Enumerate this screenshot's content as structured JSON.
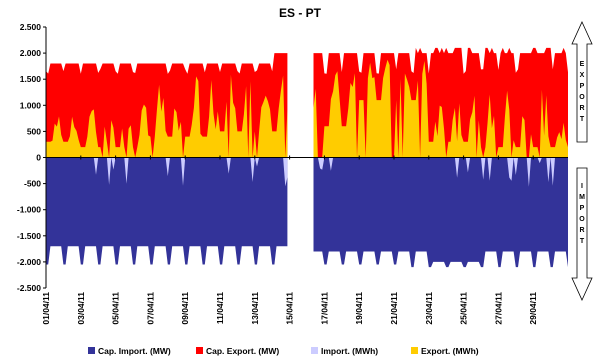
{
  "chart_data": {
    "type": "area",
    "title": "ES - PT",
    "xlabel": "",
    "ylabel": "",
    "ylim": [
      -2500,
      2500
    ],
    "yticks": [
      2500,
      2000,
      1500,
      1000,
      500,
      0,
      -500,
      -1000,
      -1500,
      -2000,
      -2500
    ],
    "ytick_labels": [
      "2.500",
      "2.000",
      "1.500",
      "1.000",
      "500",
      "0",
      "-500",
      "-1.000",
      "-1.500",
      "-2.000",
      "-2.500"
    ],
    "x_range_days": [
      1,
      30
    ],
    "gap_days": [
      14.9,
      16.3
    ],
    "xtick_labels": [
      {
        "day": 1,
        "label": "01/04/11"
      },
      {
        "day": 3,
        "label": "03/04/11"
      },
      {
        "day": 5,
        "label": "05/04/11"
      },
      {
        "day": 7,
        "label": "07/04/11"
      },
      {
        "day": 9,
        "label": "09/04/11"
      },
      {
        "day": 11,
        "label": "11/04/11"
      },
      {
        "day": 13,
        "label": "13/04/11"
      },
      {
        "day": 15,
        "label": "15/04/11"
      },
      {
        "day": 17,
        "label": "17/04/11"
      },
      {
        "day": 19,
        "label": "19/04/11"
      },
      {
        "day": 21,
        "label": "21/04/11"
      },
      {
        "day": 23,
        "label": "23/04/11"
      },
      {
        "day": 25,
        "label": "25/04/11"
      },
      {
        "day": 27,
        "label": "27/04/11"
      },
      {
        "day": 29,
        "label": "29/04/11"
      }
    ],
    "legend_position": "bottom",
    "series": [
      {
        "name": "Cap. Import. (MW)",
        "color": "#333399",
        "kind": "import_capacity",
        "typical": -1700,
        "low": -2100
      },
      {
        "name": "Cap. Export. (MW)",
        "color": "#ff0000",
        "kind": "export_capacity",
        "typical": 1800,
        "high": 2100
      },
      {
        "name": "Import. (MWh)",
        "color": "#ccccff",
        "kind": "import_flow",
        "typical": -50,
        "min": -700
      },
      {
        "name": "Export. (MWh)",
        "color": "#ffcc00",
        "kind": "export_flow",
        "typical": 1000,
        "max": 2000
      }
    ],
    "side_labels": {
      "export": "EXPORT",
      "import": "IMPORT"
    }
  }
}
